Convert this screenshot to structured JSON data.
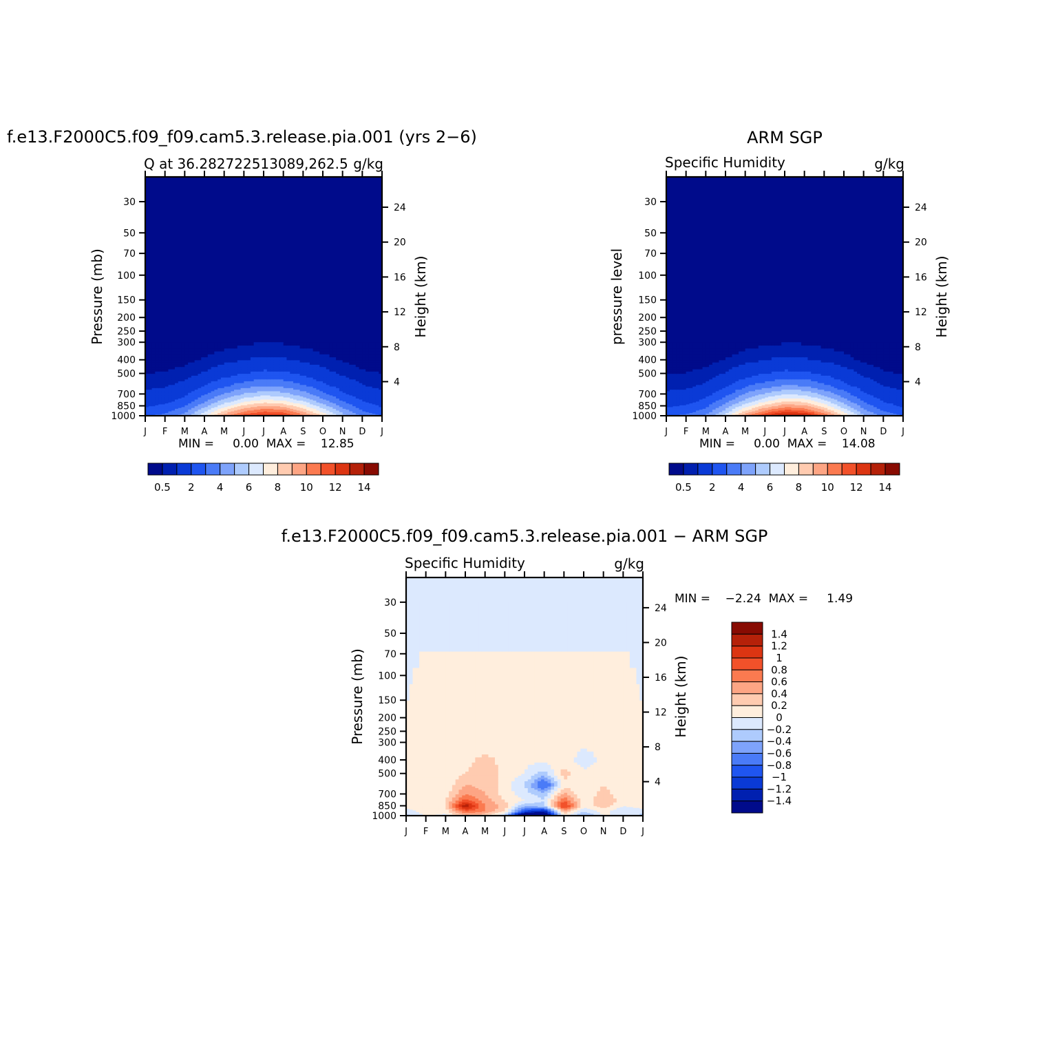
{
  "month_ticks": [
    "J",
    "F",
    "M",
    "A",
    "M",
    "J",
    "J",
    "A",
    "S",
    "O",
    "N",
    "D",
    "J"
  ],
  "pressure_ticks": [
    "30",
    "50",
    "70",
    "100",
    "150",
    "200",
    "250",
    "300",
    "400",
    "500",
    "700",
    "850",
    "1000"
  ],
  "height_ticks": [
    "24",
    "20",
    "16",
    "12",
    "8",
    "4"
  ],
  "model": {
    "title": "f.e13.F2000C5.f09_f09.cam5.3.release.pia.001 (yrs 2−6)",
    "left_label": "Q at 36.282722513089,262.5",
    "units": "g/kg",
    "ylabel": "Pressure (mb)",
    "y2label": "Height (km)",
    "minmax": "MIN =     0.00  MAX =    12.85"
  },
  "obs": {
    "title": "ARM SGP",
    "left_label": "Specific Humidity",
    "units": "g/kg",
    "ylabel": "pressure level",
    "y2label": "Height (km)",
    "minmax": "MIN =     0.00  MAX =    14.08"
  },
  "diff": {
    "title": "f.e13.F2000C5.f09_f09.cam5.3.release.pia.001 − ARM SGP",
    "left_label": "Specific Humidity",
    "units": "g/kg",
    "ylabel": "Pressure (mb)",
    "y2label": "Height (km)",
    "minmax": "MIN =    −2.24  MAX =     1.49"
  },
  "abs_colorbar": {
    "colors": [
      "#000b8b",
      "#0020b0",
      "#0a3ad6",
      "#1f55f0",
      "#4a7bf7",
      "#7ea3fb",
      "#aecbfd",
      "#dce9fe",
      "#ffeedd",
      "#ffcbb0",
      "#fda584",
      "#fb7a50",
      "#f2512a",
      "#dc3512",
      "#b52109",
      "#880b02"
    ],
    "labels": [
      "0.5",
      "2",
      "4",
      "6",
      "8",
      "10",
      "12",
      "14"
    ]
  },
  "diff_colorbar": {
    "colors": [
      "#880b02",
      "#b52109",
      "#dc3512",
      "#f2512a",
      "#fb7a50",
      "#fda584",
      "#ffcbb0",
      "#ffeedd",
      "#dce9fe",
      "#aecbfd",
      "#7ea3fb",
      "#4a7bf7",
      "#1f55f0",
      "#0a3ad6",
      "#0020b0",
      "#000b8b"
    ],
    "labels": [
      "1.4",
      "1.2",
      "1",
      "0.8",
      "0.6",
      "0.4",
      "0.2",
      "0",
      "−0.2",
      "−0.4",
      "−0.6",
      "−0.8",
      "−1",
      "−1.2",
      "−1.4"
    ]
  },
  "chart_data": [
    {
      "type": "heatmap",
      "name": "model",
      "units": "g/kg",
      "x": [
        "J",
        "F",
        "M",
        "A",
        "M",
        "J",
        "J",
        "A",
        "S",
        "O",
        "N",
        "D",
        "J"
      ],
      "y_pressure_mb": [
        1000,
        925,
        850,
        775,
        700,
        600,
        500,
        400,
        300
      ],
      "values": [
        [
          3.0,
          3.3,
          4.5,
          7.0,
          9.6,
          11.6,
          12.8,
          12.5,
          10.5,
          8.0,
          5.5,
          3.8,
          3.0
        ],
        [
          2.4,
          2.7,
          3.7,
          5.8,
          8.2,
          10.0,
          10.9,
          10.6,
          8.9,
          6.7,
          4.6,
          3.1,
          2.4
        ],
        [
          1.9,
          2.2,
          3.0,
          4.7,
          6.7,
          8.3,
          9.1,
          8.8,
          7.3,
          5.5,
          3.7,
          2.5,
          1.9
        ],
        [
          1.5,
          1.7,
          2.3,
          3.7,
          5.3,
          6.6,
          7.3,
          7.0,
          5.8,
          4.3,
          2.9,
          2.0,
          1.5
        ],
        [
          1.2,
          1.3,
          1.8,
          2.9,
          4.1,
          5.1,
          5.7,
          5.4,
          4.5,
          3.3,
          2.2,
          1.5,
          1.2
        ],
        [
          0.8,
          0.9,
          1.2,
          1.9,
          2.7,
          3.4,
          3.8,
          3.6,
          3.0,
          2.2,
          1.5,
          1.0,
          0.8
        ],
        [
          0.5,
          0.55,
          0.7,
          1.1,
          1.6,
          2.0,
          2.3,
          2.2,
          1.8,
          1.3,
          0.9,
          0.6,
          0.5
        ],
        [
          0.2,
          0.25,
          0.35,
          0.55,
          0.8,
          1.0,
          1.15,
          1.1,
          0.9,
          0.65,
          0.45,
          0.3,
          0.2
        ],
        [
          0.05,
          0.06,
          0.1,
          0.18,
          0.3,
          0.4,
          0.48,
          0.45,
          0.35,
          0.25,
          0.15,
          0.08,
          0.05
        ]
      ],
      "min": 0.0,
      "max": 12.85
    },
    {
      "type": "heatmap",
      "name": "obs",
      "units": "g/kg",
      "x": [
        "J",
        "F",
        "M",
        "A",
        "M",
        "J",
        "J",
        "A",
        "S",
        "O",
        "N",
        "D",
        "J"
      ],
      "y_pressure_mb": [
        1000,
        925,
        850,
        775,
        700,
        600,
        500,
        400,
        300
      ],
      "values": [
        [
          3.0,
          3.2,
          4.2,
          6.6,
          9.9,
          12.4,
          14.0,
          13.6,
          11.2,
          8.1,
          5.3,
          3.6,
          3.0
        ],
        [
          2.4,
          2.6,
          3.4,
          5.4,
          8.1,
          10.3,
          11.6,
          11.3,
          9.3,
          6.7,
          4.4,
          3.0,
          2.4
        ],
        [
          1.9,
          2.1,
          2.8,
          4.4,
          6.6,
          8.4,
          9.6,
          9.3,
          7.6,
          5.5,
          3.6,
          2.4,
          1.9
        ],
        [
          1.5,
          1.6,
          2.2,
          3.5,
          5.2,
          6.7,
          7.7,
          7.5,
          6.1,
          4.4,
          2.8,
          1.9,
          1.5
        ],
        [
          1.15,
          1.25,
          1.7,
          2.7,
          4.1,
          5.2,
          6.0,
          5.8,
          4.7,
          3.4,
          2.2,
          1.5,
          1.15
        ],
        [
          0.75,
          0.8,
          1.1,
          1.75,
          2.7,
          3.4,
          3.9,
          3.8,
          3.1,
          2.25,
          1.45,
          0.95,
          0.75
        ],
        [
          0.48,
          0.52,
          0.68,
          1.05,
          1.6,
          2.0,
          2.3,
          2.25,
          1.85,
          1.35,
          0.88,
          0.58,
          0.48
        ],
        [
          0.2,
          0.22,
          0.32,
          0.52,
          0.78,
          1.0,
          1.15,
          1.1,
          0.9,
          0.66,
          0.42,
          0.27,
          0.2
        ],
        [
          0.04,
          0.05,
          0.09,
          0.16,
          0.28,
          0.38,
          0.46,
          0.44,
          0.34,
          0.24,
          0.14,
          0.07,
          0.04
        ]
      ],
      "min": 0.0,
      "max": 14.08
    },
    {
      "type": "heatmap",
      "name": "difference",
      "units": "g/kg",
      "x": [
        "J",
        "F",
        "M",
        "A",
        "M",
        "J",
        "J",
        "A",
        "S",
        "O",
        "N",
        "D",
        "J"
      ],
      "y_pressure_mb": [
        1000,
        925,
        850,
        775,
        700,
        600,
        500,
        400,
        300,
        150,
        30
      ],
      "values": [
        [
          -0.3,
          0.05,
          -0.1,
          0.3,
          0.2,
          -0.3,
          -2.2,
          -2.2,
          0.1,
          -0.5,
          0.0,
          0.0,
          -0.3
        ],
        [
          -0.1,
          0.1,
          0.1,
          0.8,
          0.6,
          0.2,
          -1.0,
          -1.3,
          0.4,
          -0.2,
          0.1,
          -0.2,
          -0.1
        ],
        [
          0.1,
          0.2,
          0.2,
          1.4,
          0.6,
          0.3,
          -0.4,
          -0.3,
          1.1,
          0.1,
          0.3,
          0.0,
          0.1
        ],
        [
          0.1,
          0.1,
          0.2,
          0.9,
          0.5,
          0.2,
          0.0,
          -0.2,
          0.8,
          0.05,
          0.4,
          0.1,
          0.1
        ],
        [
          0.05,
          0.05,
          0.1,
          0.6,
          0.4,
          0.1,
          -0.1,
          -0.3,
          0.5,
          0.0,
          0.3,
          0.05,
          0.05
        ],
        [
          0.05,
          0.1,
          0.05,
          0.4,
          0.35,
          0.1,
          -0.2,
          -0.9,
          0.1,
          0.0,
          0.2,
          0.05,
          0.05
        ],
        [
          0.05,
          0.05,
          0.05,
          0.2,
          0.4,
          0.1,
          0.0,
          -0.3,
          0.3,
          0.05,
          0.1,
          0.05,
          0.05
        ],
        [
          0.05,
          0.05,
          0.05,
          0.1,
          0.3,
          0.1,
          0.05,
          0.05,
          0.1,
          -0.1,
          0.05,
          0.05,
          0.05
        ],
        [
          0.05,
          0.05,
          0.05,
          0.05,
          0.05,
          0.05,
          0.05,
          0.05,
          0.05,
          0.05,
          0.05,
          0.05,
          0.05
        ],
        [
          0.0,
          0.05,
          0.05,
          0.05,
          0.05,
          0.05,
          0.05,
          0.05,
          0.05,
          0.05,
          0.05,
          0.05,
          0.0
        ],
        [
          -0.05,
          -0.05,
          -0.05,
          -0.05,
          -0.05,
          -0.05,
          -0.05,
          -0.05,
          -0.05,
          -0.05,
          -0.05,
          -0.05,
          -0.05
        ]
      ],
      "min": -2.24,
      "max": 1.49
    }
  ]
}
